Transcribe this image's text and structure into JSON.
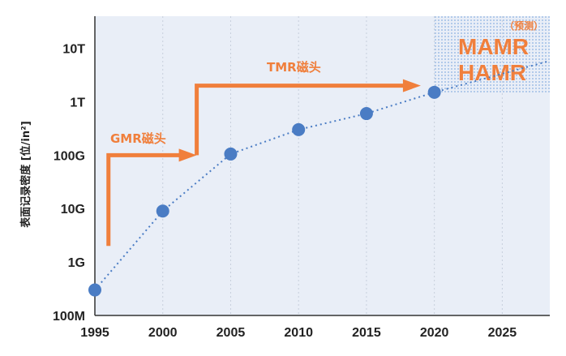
{
  "colors": {
    "plot_bg": "#e9eef7",
    "point": "#4a7cc4",
    "point_line": "#4a7cc4",
    "arrow": "#f07f3c",
    "text": "#222222"
  },
  "chart_data": {
    "type": "scatter",
    "scale": "log",
    "ylabel": "表面记录密度 [位/in²]",
    "x_ticks": [
      "1995",
      "2000",
      "2005",
      "2010",
      "2015",
      "2020",
      "2025"
    ],
    "y_ticks": [
      "100M",
      "1G",
      "10G",
      "100G",
      "1T",
      "10T"
    ],
    "xlim": [
      1995,
      2028.5
    ],
    "ylim_log10": [
      8,
      13.6
    ],
    "grid": "vertical dotted",
    "series": [
      {
        "points": [
          {
            "x": 1995,
            "y": 300000000
          },
          {
            "x": 2000,
            "y": 9000000000
          },
          {
            "x": 2005,
            "y": 105000000000
          },
          {
            "x": 2010,
            "y": 300000000000
          },
          {
            "x": 2015,
            "y": 600000000000
          },
          {
            "x": 2020,
            "y": 1500000000000
          }
        ]
      }
    ],
    "annotations": {
      "gmr_label": "GMR磁头",
      "tmr_label": "TMR磁头",
      "mamr_label": "MAMR",
      "hamr_label": "HAMR",
      "forecast_label": "（预测）"
    }
  }
}
